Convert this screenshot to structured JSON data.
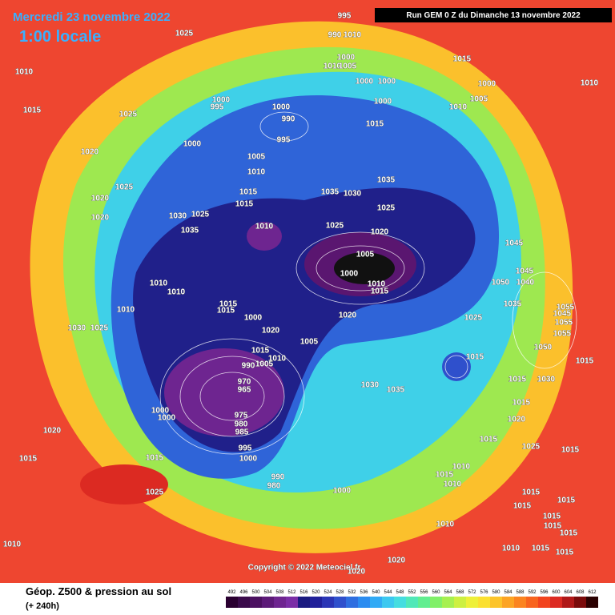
{
  "header": {
    "date": "Mercredi 23 novembre 2022",
    "time": "1:00 locale",
    "run": "Run GEM 0 Z du Dimanche 13 novembre 2022"
  },
  "map": {
    "copyright": "Copyright © 2022 Meteociel.fr",
    "pressure_labels": [
      1025,
      1010,
      1015,
      1025,
      995,
      990,
      1010,
      1000,
      1010,
      1005,
      1000,
      1000,
      1000,
      1015,
      1000,
      1010,
      1005,
      1010,
      1000,
      995,
      1000,
      990,
      995,
      1015,
      1000,
      1020,
      1005,
      1010,
      1025,
      1035,
      1015,
      1035,
      1030,
      1015,
      1025,
      1020,
      1020,
      1030,
      1025,
      1035,
      1025,
      1020,
      1010,
      1045,
      1005,
      1000,
      1045,
      1050,
      1040,
      1010,
      1015,
      1010,
      1010,
      1010,
      1015,
      1015,
      1035,
      1055,
      1045,
      1055,
      1020,
      1025,
      1000,
      1030,
      1025,
      1020,
      1055,
      1005,
      1015,
      1050,
      1015,
      1015,
      1010,
      990,
      1005,
      1035,
      1030,
      1015,
      1030,
      970,
      965,
      1015,
      1000,
      1000,
      975,
      980,
      1020,
      985,
      1015,
      1020,
      1025,
      995,
      1015,
      1015,
      1000,
      1015,
      1010,
      1015,
      1010,
      990,
      980,
      1000,
      1025,
      1015,
      1015,
      1015,
      1015,
      1015,
      1010,
      1015,
      1010,
      1015,
      1010,
      1015,
      1020,
      1020
    ]
  },
  "footer": {
    "title": "Géop. Z500 & pression au sol",
    "lead": "(+ 240h)"
  },
  "legend": {
    "values": [
      492,
      496,
      500,
      504,
      508,
      512,
      516,
      520,
      524,
      528,
      532,
      536,
      540,
      544,
      548,
      552,
      556,
      560,
      564,
      568,
      572,
      576,
      580,
      584,
      588,
      592,
      596,
      600,
      604,
      608,
      612
    ],
    "colors": [
      "#2a0030",
      "#3a0a4a",
      "#4b1060",
      "#5c1a78",
      "#6e2590",
      "#7a2ea6",
      "#1a1a80",
      "#20209a",
      "#2a35b5",
      "#2f50cc",
      "#2e6ee0",
      "#2b8cf0",
      "#31aaf5",
      "#3cc8f0",
      "#45dde0",
      "#50e8b8",
      "#60ee90",
      "#80f068",
      "#a6f050",
      "#cdf040",
      "#eef038",
      "#fbe030",
      "#fcc42a",
      "#fca424",
      "#fb8420",
      "#f8641e",
      "#f2441e",
      "#dc2a22",
      "#b01818",
      "#7a0a0a",
      "#2a0000"
    ]
  }
}
